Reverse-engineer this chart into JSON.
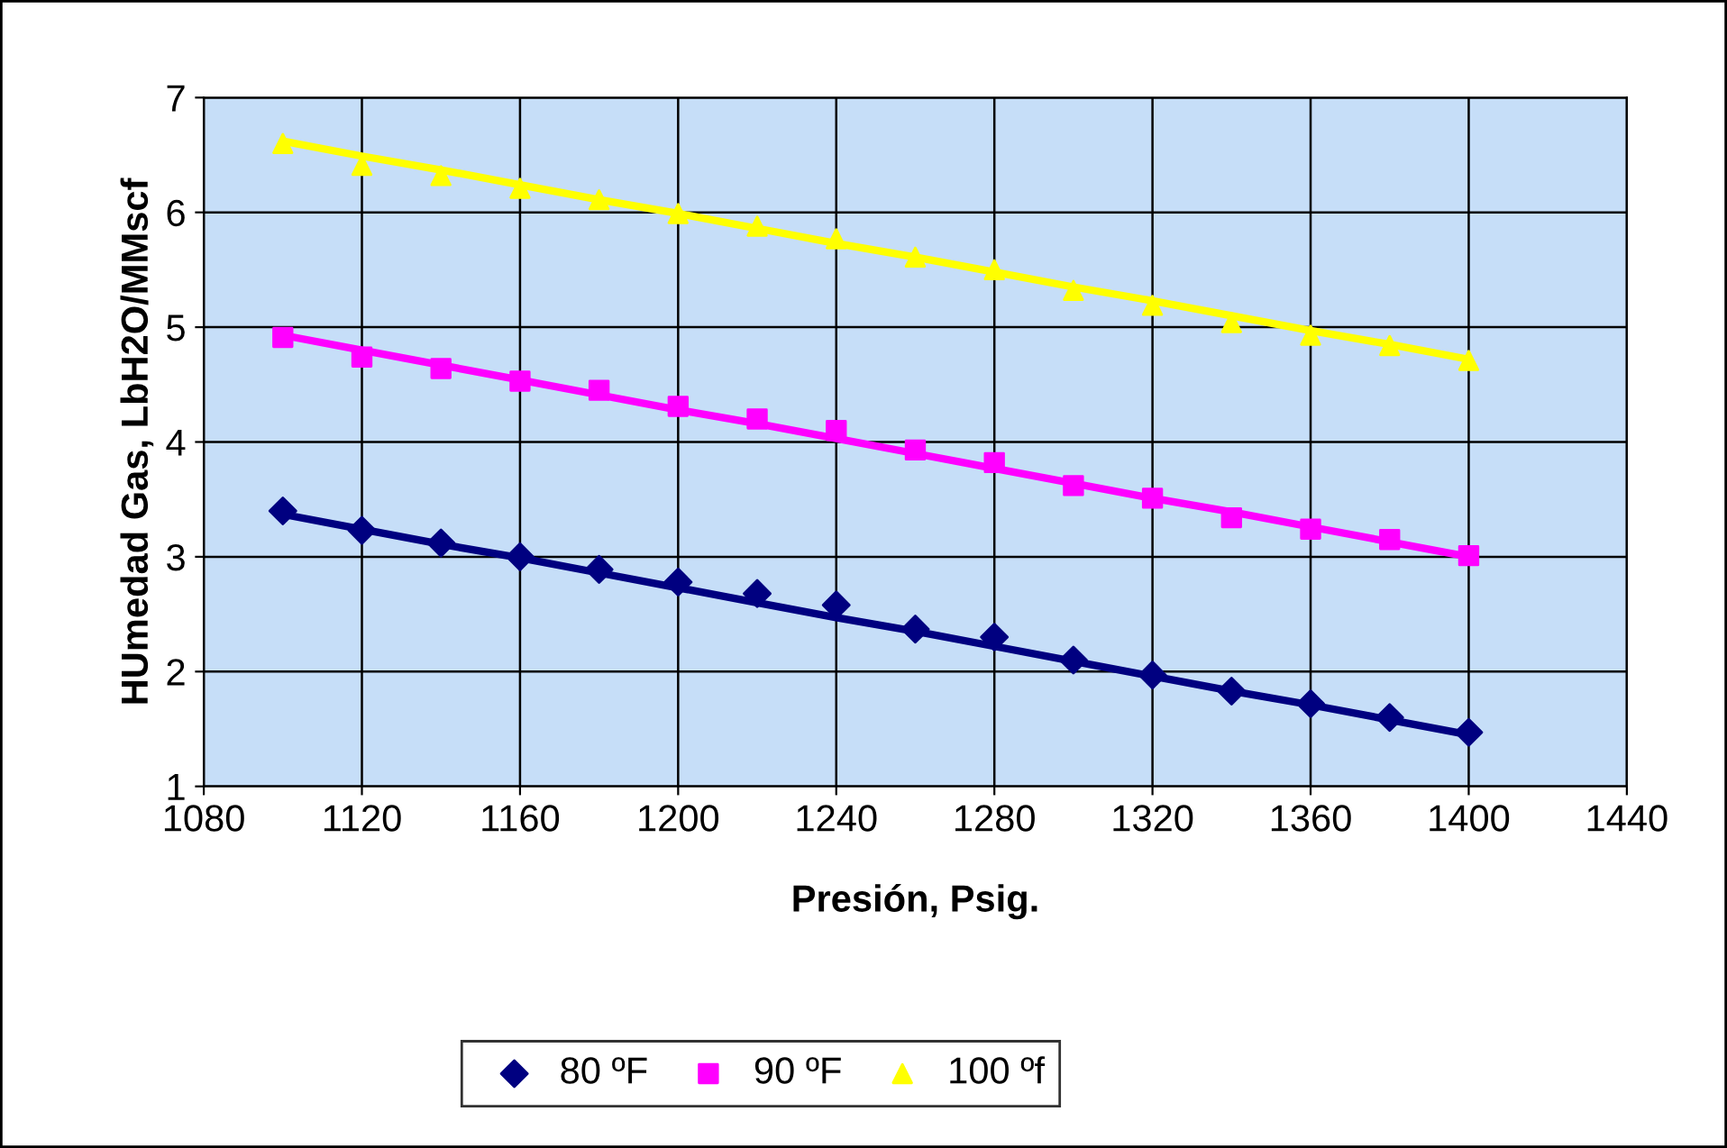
{
  "chart_data": {
    "type": "scatter",
    "xlabel": "Presión, Psig.",
    "ylabel": "HUmedad Gas, LbH2O/MMscf",
    "x": [
      1100,
      1120,
      1140,
      1160,
      1180,
      1200,
      1220,
      1240,
      1260,
      1280,
      1300,
      1320,
      1340,
      1360,
      1380,
      1400
    ],
    "series": [
      {
        "name": "80 ºF",
        "color": "#000080",
        "marker": "diamond",
        "values": [
          3.4,
          3.23,
          3.12,
          3.0,
          2.89,
          2.78,
          2.68,
          2.58,
          2.37,
          2.3,
          2.1,
          1.97,
          1.83,
          1.72,
          1.6,
          1.47
        ]
      },
      {
        "name": "90 ºF",
        "color": "#ff00ff",
        "marker": "square",
        "values": [
          4.91,
          4.74,
          4.64,
          4.53,
          4.45,
          4.31,
          4.2,
          4.1,
          3.93,
          3.82,
          3.62,
          3.51,
          3.34,
          3.24,
          3.15,
          3.01
        ]
      },
      {
        "name": "100 ºf",
        "color": "#ffff00",
        "marker": "triangle",
        "values": [
          6.6,
          6.41,
          6.32,
          6.21,
          6.11,
          5.99,
          5.88,
          5.77,
          5.61,
          5.5,
          5.32,
          5.19,
          5.04,
          4.93,
          4.84,
          4.71
        ]
      },
      {
        "type": "line",
        "color": "#000080",
        "values": [
          3.37,
          3.24,
          3.11,
          2.99,
          2.86,
          2.73,
          2.6,
          2.47,
          2.35,
          2.22,
          2.09,
          1.96,
          1.83,
          1.71,
          1.58,
          1.45
        ]
      },
      {
        "type": "line",
        "color": "#ff00ff",
        "values": [
          4.93,
          4.8,
          4.67,
          4.54,
          4.41,
          4.28,
          4.16,
          4.03,
          3.9,
          3.77,
          3.64,
          3.51,
          3.39,
          3.26,
          3.13,
          3.0
        ]
      },
      {
        "type": "line",
        "color": "#ffff00",
        "values": [
          6.62,
          6.49,
          6.37,
          6.24,
          6.11,
          5.99,
          5.86,
          5.73,
          5.61,
          5.48,
          5.35,
          5.23,
          5.1,
          4.97,
          4.85,
          4.72
        ]
      }
    ],
    "xlim": [
      1080,
      1440
    ],
    "xticks": [
      1080,
      1120,
      1160,
      1200,
      1240,
      1280,
      1320,
      1360,
      1400,
      1440
    ],
    "ylim": [
      1,
      7
    ],
    "yticks": [
      1,
      2,
      3,
      4,
      5,
      6,
      7
    ],
    "grid": true,
    "legend": "bottom"
  }
}
